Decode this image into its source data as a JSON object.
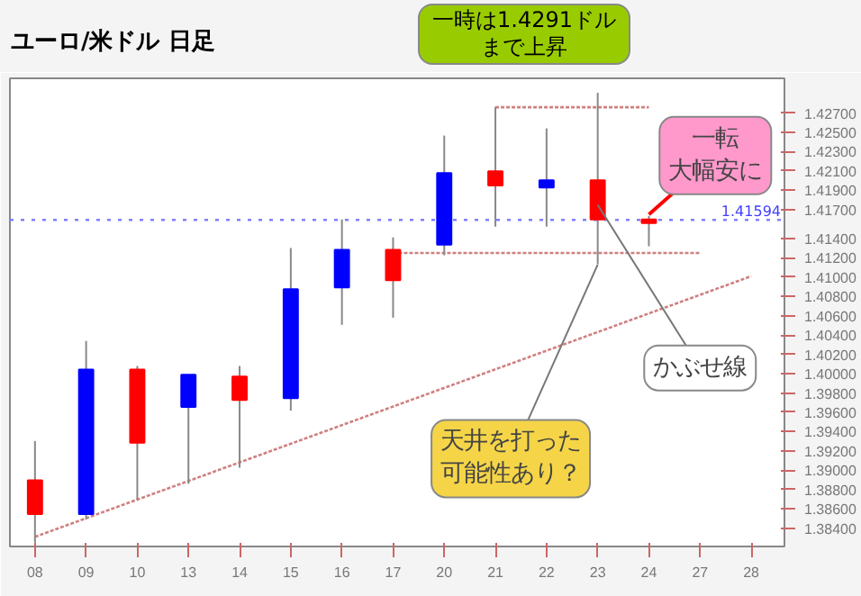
{
  "chart_data": {
    "type": "candlestick",
    "title": "ユーロ/米ドル 日足",
    "categories": [
      "08",
      "09",
      "10",
      "13",
      "14",
      "15",
      "16",
      "17",
      "20",
      "21",
      "22",
      "23",
      "24",
      "27",
      "28"
    ],
    "ohlc": [
      [
        1.38896,
        1.39303,
        1.38249,
        1.38545
      ],
      [
        1.38545,
        1.40339,
        1.3849,
        1.40043
      ],
      [
        1.40043,
        1.4008,
        1.38693,
        1.39285
      ],
      [
        1.39655,
        1.39988,
        1.3886,
        1.39988
      ],
      [
        1.3997,
        1.4008,
        1.39026,
        1.39729
      ],
      [
        1.39747,
        1.41302,
        1.39618,
        1.40876
      ],
      [
        1.40894,
        1.41598,
        1.40506,
        1.41283
      ],
      [
        1.41283,
        1.41412,
        1.4058,
        1.40968
      ],
      [
        1.41338,
        1.42467,
        1.41227,
        1.42078
      ],
      [
        1.42097,
        1.42763,
        1.41524,
        1.41949
      ],
      [
        1.4193,
        1.42541,
        1.41524,
        1.42004
      ],
      [
        1.42004,
        1.4291,
        1.41135,
        1.41598
      ],
      [
        1.41598,
        1.41634,
        1.4132,
        1.4156
      ],
      null,
      null
    ],
    "colors": [
      "#ff0000",
      "#0000ff",
      "#ff0000",
      "#0000ff",
      "#ff0000",
      "#0000ff",
      "#0000ff",
      "#ff0000",
      "#0000ff",
      "#ff0000",
      "#0000ff",
      "#ff0000",
      "#ff0000",
      null,
      null
    ],
    "series": [
      {
        "type": "line",
        "x": [
          "08",
          "28"
        ],
        "values": [
          1.3831,
          1.4101
        ],
        "color": "#d08080",
        "line_style": "dotted"
      },
      {
        "type": "line",
        "x": [
          "21",
          "24"
        ],
        "values": [
          1.4276,
          1.4276
        ],
        "color": "#d08080",
        "line_style": "dotted"
      },
      {
        "type": "line",
        "x": [
          "17",
          "27"
        ],
        "values": [
          1.4125,
          1.4125
        ],
        "color": "#d08080",
        "line_style": "dotted"
      }
    ],
    "ref_lines": [
      {
        "axis": "y",
        "value": 1.41594,
        "label": "1.41594",
        "color": "#8080ff",
        "line_style": "dotted"
      }
    ],
    "annotations": [
      {
        "text": "一時は1.4291ドルまで上昇",
        "x": "23",
        "y": 1.4291
      },
      {
        "text": "一転大幅安に",
        "x": "24",
        "y": 1.4165
      },
      {
        "text": "かぶせ線",
        "x": "23",
        "y": 1.4175
      },
      {
        "text": "天井を打った可能性あり？",
        "x": "23",
        "y": 1.4113
      }
    ],
    "ylim": [
      1.3821,
      1.4306
    ],
    "yticks": [
      {
        "value": 1.427,
        "label": "1.42700"
      },
      {
        "value": 1.425,
        "label": "1.42500"
      },
      {
        "value": 1.423,
        "label": "1.42300"
      },
      {
        "value": 1.421,
        "label": "1.42100"
      },
      {
        "value": 1.419,
        "label": "1.41900"
      },
      {
        "value": 1.417,
        "label": "1.41700"
      },
      {
        "value": 1.414,
        "label": "1.41400"
      },
      {
        "value": 1.412,
        "label": "1.41200"
      },
      {
        "value": 1.41,
        "label": "1.41000"
      },
      {
        "value": 1.408,
        "label": "1.40800"
      },
      {
        "value": 1.406,
        "label": "1.40600"
      },
      {
        "value": 1.404,
        "label": "1.40400"
      },
      {
        "value": 1.402,
        "label": "1.40200"
      },
      {
        "value": 1.4,
        "label": "1.40000"
      },
      {
        "value": 1.398,
        "label": "1.39800"
      },
      {
        "value": 1.396,
        "label": "1.39600"
      },
      {
        "value": 1.394,
        "label": "1.39400"
      },
      {
        "value": 1.392,
        "label": "1.39200"
      },
      {
        "value": 1.39,
        "label": "1.39000"
      },
      {
        "value": 1.388,
        "label": "1.38800"
      },
      {
        "value": 1.386,
        "label": "1.38600"
      },
      {
        "value": 1.384,
        "label": "1.38400"
      }
    ],
    "grid": false
  }
}
